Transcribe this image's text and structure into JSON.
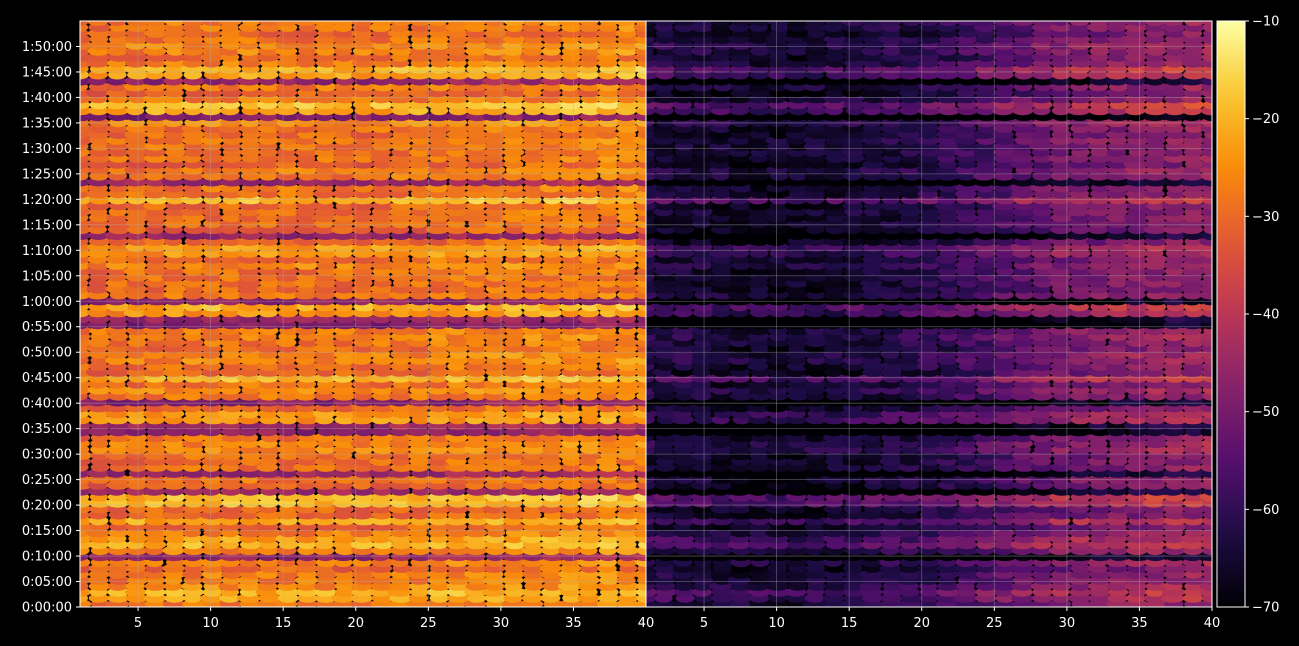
{
  "chart_data": {
    "type": "heatmap",
    "title": "",
    "panels": [
      {
        "name": "",
        "xlim": [
          1,
          40
        ],
        "xticks": [
          5,
          10,
          15,
          20,
          25,
          30,
          35
        ],
        "xtick_labels": [
          "5",
          "10",
          "15",
          "20",
          "25",
          "30",
          "35"
        ],
        "level_profile": [
          {
            "x": 1,
            "value": -30
          },
          {
            "x": 10,
            "value": -28
          },
          {
            "x": 20,
            "value": -29
          },
          {
            "x": 30,
            "value": -27
          },
          {
            "x": 40,
            "value": -26
          }
        ]
      },
      {
        "name": "",
        "xlim": [
          1,
          40
        ],
        "xticks": [
          5,
          10,
          15,
          20,
          25,
          30,
          35,
          40
        ],
        "xtick_labels": [
          "5",
          "10",
          "15",
          "20",
          "25",
          "30",
          "35",
          "40"
        ],
        "level_profile": [
          {
            "x": 1,
            "value": -63
          },
          {
            "x": 10,
            "value": -66
          },
          {
            "x": 20,
            "value": -62
          },
          {
            "x": 25,
            "value": -56
          },
          {
            "x": 30,
            "value": -50
          },
          {
            "x": 40,
            "value": -45
          }
        ]
      }
    ],
    "left_panel_extra_tick": "40",
    "yaxis": {
      "range_seconds": [
        0,
        6900
      ],
      "ticks": [
        "0:00:00",
        "0:05:00",
        "0:10:00",
        "0:15:00",
        "0:20:00",
        "0:25:00",
        "0:30:00",
        "0:35:00",
        "0:40:00",
        "0:45:00",
        "0:50:00",
        "0:55:00",
        "1:00:00",
        "1:05:00",
        "1:10:00",
        "1:15:00",
        "1:20:00",
        "1:25:00",
        "1:30:00",
        "1:35:00",
        "1:40:00",
        "1:45:00",
        "1:50:00"
      ]
    },
    "bright_rows": [
      "0:02:00",
      "0:13:00",
      "0:17:00",
      "0:21:00",
      "0:37:00",
      "0:45:00",
      "0:58:00",
      "1:10:00",
      "1:20:00",
      "1:38:00",
      "1:45:00"
    ],
    "dark_rows": [
      "0:09:30",
      "0:23:00",
      "0:26:00",
      "0:35:00",
      "0:40:00",
      "0:56:00",
      "1:00:30",
      "1:13:00",
      "1:23:00",
      "1:36:00",
      "1:43:00"
    ],
    "colorbar": {
      "colormap": "inferno",
      "range": [
        -70,
        -10
      ],
      "ticks": [
        "−10",
        "−20",
        "−30",
        "−40",
        "−50",
        "−60",
        "−70"
      ]
    },
    "grid": true,
    "colors": {
      "background": "#000000",
      "foreground": "#ffffff",
      "grid": "#b0b0b0"
    }
  }
}
